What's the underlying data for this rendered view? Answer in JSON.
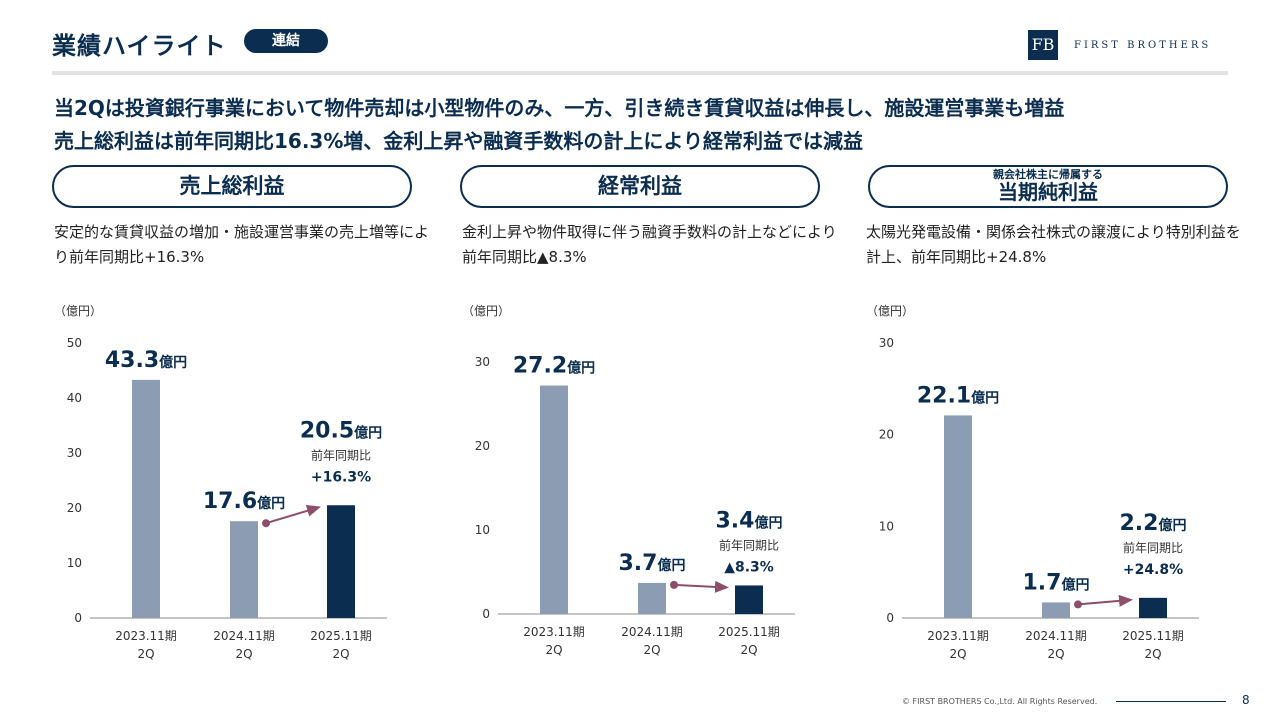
{
  "header": {
    "title": "業績ハイライト",
    "badge": "連結",
    "logo_mark": "FB",
    "logo_text": "FIRST BROTHERS"
  },
  "headline": {
    "line1": "当2Qは投資銀行事業において物件売却は小型物件のみ、一方、引き続き賃貸収益は伸長し、施設運営事業も増益",
    "line2": "売上総利益は前年同期比16.3%増、金利上昇や融資手数料の計上により経常利益では減益"
  },
  "panels": [
    {
      "title": "売上総利益",
      "subtitle": "",
      "description": "安定的な賃貸収益の増加・施設運営事業の売上増等により前年同期比+16.3%",
      "unit": "（億円）"
    },
    {
      "title": "経常利益",
      "subtitle": "",
      "description": "金利上昇や物件取得に伴う融資手数料の計上などにより前年同期比▲8.3%",
      "unit": "（億円）"
    },
    {
      "title": "当期純利益",
      "subtitle": "親会社株主に帰属する",
      "description": "太陽光発電設備・関係会社株式の譲渡により特別利益を計上、前年同期比+24.8%",
      "unit": "（億円）"
    }
  ],
  "chart_data": [
    {
      "type": "bar",
      "title": "売上総利益",
      "ylabel": "（億円）",
      "categories": [
        "2023.11期\n2Q",
        "2024.11期\n2Q",
        "2025.11期\n2Q"
      ],
      "values": [
        43.3,
        17.6,
        20.5
      ],
      "ylim": [
        0,
        50
      ],
      "yticks": [
        0,
        10,
        20,
        30,
        40,
        50
      ],
      "value_labels": [
        "43.3",
        "17.6",
        "20.5"
      ],
      "value_unit": "億円",
      "yoy_label": "前年同期比",
      "yoy_value": "+16.3%",
      "colors": [
        "#8c9db3",
        "#8c9db3",
        "#0b2d4f"
      ],
      "arrow_color": "#8e4d6a"
    },
    {
      "type": "bar",
      "title": "経常利益",
      "ylabel": "（億円）",
      "categories": [
        "2023.11期\n2Q",
        "2024.11期\n2Q",
        "2025.11期\n2Q"
      ],
      "values": [
        27.2,
        3.7,
        3.4
      ],
      "ylim": [
        0,
        30
      ],
      "yticks": [
        0,
        10,
        20,
        30
      ],
      "value_labels": [
        "27.2",
        "3.7",
        "3.4"
      ],
      "value_unit": "億円",
      "yoy_label": "前年同期比",
      "yoy_value": "▲8.3%",
      "colors": [
        "#8c9db3",
        "#8c9db3",
        "#0b2d4f"
      ],
      "arrow_color": "#8e4d6a"
    },
    {
      "type": "bar",
      "title": "当期純利益",
      "ylabel": "（億円）",
      "categories": [
        "2023.11期\n2Q",
        "2024.11期\n2Q",
        "2025.11期\n2Q"
      ],
      "values": [
        22.1,
        1.7,
        2.2
      ],
      "ylim": [
        0,
        30
      ],
      "yticks": [
        0,
        10,
        20,
        30
      ],
      "value_labels": [
        "22.1",
        "1.7",
        "2.2"
      ],
      "value_unit": "億円",
      "yoy_label": "前年同期比",
      "yoy_value": "+24.8%",
      "colors": [
        "#8c9db3",
        "#8c9db3",
        "#0b2d4f"
      ],
      "arrow_color": "#8e4d6a"
    }
  ],
  "footer": {
    "copyright": "© FIRST BROTHERS Co.,Ltd. All Rights Reserved.",
    "page": "8"
  }
}
